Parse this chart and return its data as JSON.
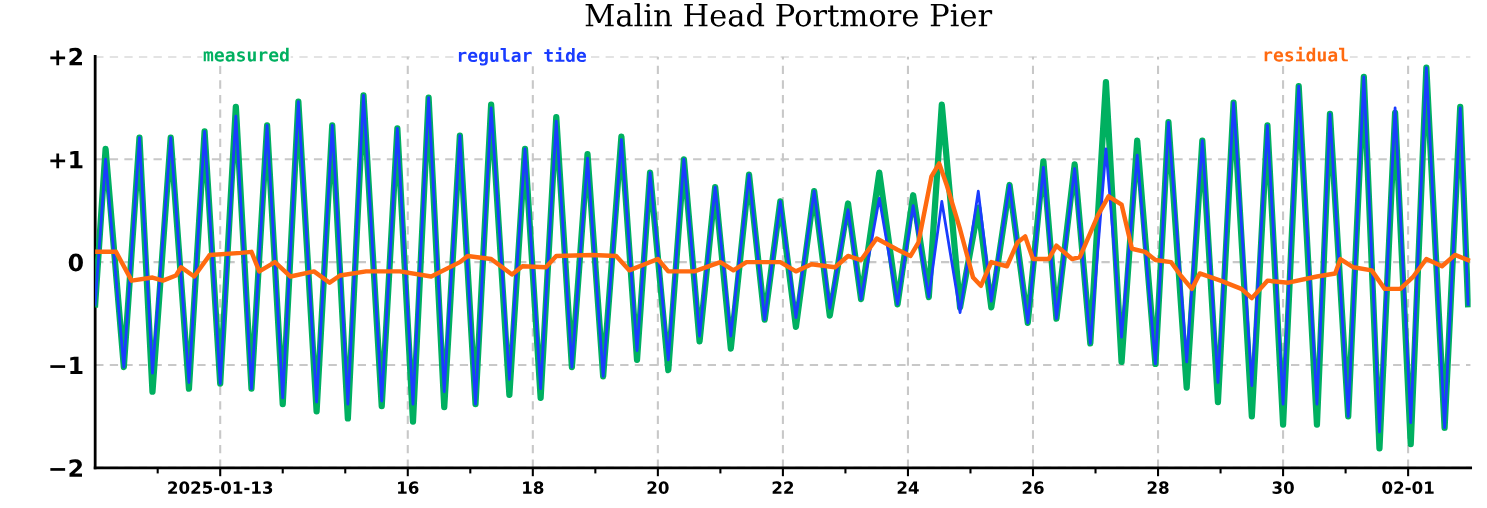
{
  "chart_data": {
    "type": "line",
    "title": "Malin Head Portmore Pier",
    "x": [
      "2025-01-11T00:00",
      "2025-01-11T04:00",
      "2025-01-11T11:00",
      "2025-01-11T17:00",
      "2025-01-11T22:00",
      "2025-01-12T05:00",
      "2025-01-12T12:00",
      "2025-01-12T18:00",
      "2025-01-13T00:00",
      "2025-01-13T06:00",
      "2025-01-13T12:00",
      "2025-01-13T18:00",
      "2025-01-14T00:00",
      "2025-01-14T06:00",
      "2025-01-14T13:00",
      "2025-01-14T19:00",
      "2025-01-15T01:00",
      "2025-01-15T07:00",
      "2025-01-15T14:00",
      "2025-01-15T20:00",
      "2025-01-16T02:00",
      "2025-01-16T08:00",
      "2025-01-16T14:00",
      "2025-01-16T20:00",
      "2025-01-17T02:00",
      "2025-01-17T08:00",
      "2025-01-17T15:00",
      "2025-01-17T21:00",
      "2025-01-18T03:00",
      "2025-01-18T09:00",
      "2025-01-18T15:00",
      "2025-01-18T21:00",
      "2025-01-19T03:00",
      "2025-01-19T10:00",
      "2025-01-19T16:00",
      "2025-01-19T21:00",
      "2025-01-20T04:00",
      "2025-01-20T10:00",
      "2025-01-20T16:00",
      "2025-01-20T22:00",
      "2025-01-21T04:00",
      "2025-01-21T11:00",
      "2025-01-21T17:00",
      "2025-01-21T23:00",
      "2025-01-22T05:00",
      "2025-01-22T12:00",
      "2025-01-22T18:00",
      "2025-01-23T01:00",
      "2025-01-23T06:00",
      "2025-01-23T13:00",
      "2025-01-23T20:00",
      "2025-01-24T02:00",
      "2025-01-24T08:00",
      "2025-01-24T13:00",
      "2025-01-24T20:00",
      "2025-01-25T03:00",
      "2025-01-25T08:00",
      "2025-01-25T15:00",
      "2025-01-25T22:00",
      "2025-01-26T04:00",
      "2025-01-26T09:00",
      "2025-01-26T16:00",
      "2025-01-26T22:00",
      "2025-01-27T04:00",
      "2025-01-27T10:00",
      "2025-01-27T16:00",
      "2025-01-27T23:00",
      "2025-01-28T04:00",
      "2025-01-28T11:00",
      "2025-01-28T17:00",
      "2025-01-28T23:00",
      "2025-01-29T05:00",
      "2025-01-29T12:00",
      "2025-01-29T18:00",
      "2025-01-30T00:00",
      "2025-01-30T06:00",
      "2025-01-30T13:00",
      "2025-01-30T18:00",
      "2025-01-31T01:00",
      "2025-01-31T07:00",
      "2025-01-31T13:00",
      "2025-01-31T19:00",
      "2025-02-01T01:00",
      "2025-02-01T07:00",
      "2025-02-01T14:00",
      "2025-02-01T20:00",
      "2025-02-01T23:00"
    ],
    "series": [
      {
        "name": "measured",
        "color": "#00b060",
        "values": [
          -0.41,
          1.1,
          -1.02,
          1.21,
          -1.26,
          1.21,
          -1.23,
          1.27,
          -1.18,
          1.51,
          -1.23,
          1.33,
          -1.38,
          1.56,
          -1.45,
          1.33,
          -1.52,
          1.62,
          -1.4,
          1.3,
          -1.55,
          1.6,
          -1.41,
          1.23,
          -1.38,
          1.53,
          -1.29,
          1.1,
          -1.32,
          1.41,
          -1.02,
          1.05,
          -1.11,
          1.22,
          -0.95,
          0.87,
          -1.05,
          1.0,
          -0.77,
          0.73,
          -0.84,
          0.85,
          -0.56,
          0.59,
          -0.63,
          0.69,
          -0.52,
          0.57,
          -0.36,
          0.87,
          -0.41,
          0.65,
          -0.34,
          1.53,
          -0.44,
          0.53,
          -0.44,
          0.75,
          -0.59,
          0.98,
          -0.55,
          0.95,
          -0.79,
          1.75,
          -0.97,
          1.18,
          -0.99,
          1.36,
          -1.22,
          1.18,
          -1.36,
          1.55,
          -1.5,
          1.33,
          -1.58,
          1.71,
          -1.58,
          1.44,
          -1.5,
          1.8,
          -1.81,
          1.45,
          -1.77,
          1.89,
          -1.61,
          1.51,
          -0.41
        ]
      },
      {
        "name": "regular tide",
        "color": "#1a3cff",
        "values": [
          -0.41,
          1.0,
          -1.02,
          1.21,
          -1.08,
          1.21,
          -1.17,
          1.27,
          -1.18,
          1.42,
          -1.23,
          1.33,
          -1.32,
          1.56,
          -1.36,
          1.33,
          -1.38,
          1.62,
          -1.35,
          1.3,
          -1.38,
          1.6,
          -1.26,
          1.23,
          -1.38,
          1.5,
          -1.14,
          1.1,
          -1.23,
          1.37,
          -1.02,
          1.01,
          -1.11,
          1.19,
          -0.86,
          0.87,
          -0.95,
          1.0,
          -0.72,
          0.73,
          -0.72,
          0.85,
          -0.56,
          0.59,
          -0.54,
          0.69,
          -0.45,
          0.51,
          -0.36,
          0.62,
          -0.41,
          0.55,
          -0.34,
          0.59,
          -0.49,
          0.69,
          -0.38,
          0.75,
          -0.59,
          0.92,
          -0.55,
          0.91,
          -0.79,
          1.1,
          -0.73,
          1.04,
          -0.99,
          1.36,
          -0.97,
          1.18,
          -1.17,
          1.55,
          -1.2,
          1.33,
          -1.38,
          1.71,
          -1.38,
          1.44,
          -1.5,
          1.8,
          -1.65,
          1.5,
          -1.56,
          1.89,
          -1.61,
          1.5,
          -0.41
        ]
      },
      {
        "name": "residual",
        "color": "#ff6a10",
        "x": [
          "2025-01-11T00:00",
          "2025-01-11T08:00",
          "2025-01-11T14:00",
          "2025-01-11T22:00",
          "2025-01-12T02:00",
          "2025-01-12T07:00",
          "2025-01-12T09:00",
          "2025-01-12T14:00",
          "2025-01-12T20:00",
          "2025-01-13T08:00",
          "2025-01-13T12:00",
          "2025-01-13T15:00",
          "2025-01-13T21:00",
          "2025-01-14T03:00",
          "2025-01-14T12:00",
          "2025-01-14T18:00",
          "2025-01-14T22:00",
          "2025-01-15T08:00",
          "2025-01-15T21:00",
          "2025-01-16T09:00",
          "2025-01-16T20:00",
          "2025-01-16T23:00",
          "2025-01-17T08:00",
          "2025-01-17T16:00",
          "2025-01-17T20:00",
          "2025-01-18T05:00",
          "2025-01-18T09:00",
          "2025-01-18T23:00",
          "2025-01-19T08:00",
          "2025-01-19T13:00",
          "2025-01-20T00:00",
          "2025-01-20T04:00",
          "2025-01-20T14:00",
          "2025-01-21T00:00",
          "2025-01-21T05:00",
          "2025-01-21T10:00",
          "2025-01-21T23:00",
          "2025-01-22T05:00",
          "2025-01-22T11:00",
          "2025-01-22T20:00",
          "2025-01-23T01:00",
          "2025-01-23T06:00",
          "2025-01-23T12:00",
          "2025-01-23T20:00",
          "2025-01-24T01:00",
          "2025-01-24T04:00",
          "2025-01-24T09:00",
          "2025-01-24T12:00",
          "2025-01-24T15:00",
          "2025-01-24T20:00",
          "2025-01-25T01:00",
          "2025-01-25T04:00",
          "2025-01-25T08:00",
          "2025-01-25T14:00",
          "2025-01-25T18:00",
          "2025-01-25T21:00",
          "2025-01-26T00:00",
          "2025-01-26T06:00",
          "2025-01-26T09:00",
          "2025-01-26T15:00",
          "2025-01-26T18:00",
          "2025-01-27T01:00",
          "2025-01-27T05:00",
          "2025-01-27T10:00",
          "2025-01-27T14:00",
          "2025-01-27T19:00",
          "2025-01-27T23:00",
          "2025-01-28T05:00",
          "2025-01-28T09:00",
          "2025-01-28T13:00",
          "2025-01-28T16:00",
          "2025-01-29T00:00",
          "2025-01-29T08:00",
          "2025-01-29T12:00",
          "2025-01-29T18:00",
          "2025-01-30T02:00",
          "2025-01-30T13:00",
          "2025-01-30T20:00",
          "2025-01-30T22:00",
          "2025-01-31T03:00",
          "2025-01-31T10:00",
          "2025-01-31T15:00",
          "2025-01-31T21:00",
          "2025-02-01T02:00",
          "2025-02-01T07:00",
          "2025-02-01T13:00",
          "2025-02-01T18:00",
          "2025-02-01T23:00"
        ],
        "values": [
          0.1,
          0.1,
          -0.18,
          -0.15,
          -0.18,
          -0.13,
          -0.05,
          -0.14,
          0.07,
          0.09,
          0.1,
          -0.09,
          0.0,
          -0.14,
          -0.09,
          -0.2,
          -0.13,
          -0.09,
          -0.09,
          -0.14,
          0.0,
          0.06,
          0.03,
          -0.12,
          -0.04,
          -0.05,
          0.06,
          0.07,
          0.06,
          -0.08,
          0.03,
          -0.09,
          -0.09,
          0.0,
          -0.08,
          0.0,
          0.0,
          -0.09,
          -0.02,
          -0.05,
          0.06,
          0.02,
          0.23,
          0.12,
          0.06,
          0.19,
          0.83,
          0.96,
          0.74,
          0.32,
          -0.15,
          -0.23,
          0.0,
          -0.04,
          0.19,
          0.25,
          0.03,
          0.03,
          0.16,
          0.03,
          0.05,
          0.46,
          0.64,
          0.56,
          0.13,
          0.1,
          0.02,
          0.0,
          -0.14,
          -0.26,
          -0.11,
          -0.18,
          -0.26,
          -0.35,
          -0.18,
          -0.2,
          -0.14,
          -0.11,
          0.03,
          -0.05,
          -0.08,
          -0.26,
          -0.26,
          -0.14,
          0.03,
          -0.04,
          0.07,
          0.02
        ]
      }
    ],
    "xlim": [
      "2025-01-11T00:00",
      "2025-02-02T00:00"
    ],
    "xticks": [
      {
        "value": "2025-01-12",
        "label": null
      },
      {
        "value": "2025-01-13",
        "label": "2025-01-13"
      },
      {
        "value": "2025-01-14",
        "label": null
      },
      {
        "value": "2025-01-15",
        "label": null
      },
      {
        "value": "2025-01-16",
        "label": "16"
      },
      {
        "value": "2025-01-17",
        "label": null
      },
      {
        "value": "2025-01-18",
        "label": "18"
      },
      {
        "value": "2025-01-19",
        "label": null
      },
      {
        "value": "2025-01-20",
        "label": "20"
      },
      {
        "value": "2025-01-21",
        "label": null
      },
      {
        "value": "2025-01-22",
        "label": "22"
      },
      {
        "value": "2025-01-23",
        "label": null
      },
      {
        "value": "2025-01-24",
        "label": "24"
      },
      {
        "value": "2025-01-25",
        "label": null
      },
      {
        "value": "2025-01-26",
        "label": "26"
      },
      {
        "value": "2025-01-27",
        "label": null
      },
      {
        "value": "2025-01-28",
        "label": "28"
      },
      {
        "value": "2025-01-29",
        "label": null
      },
      {
        "value": "2025-01-30",
        "label": "30"
      },
      {
        "value": "2025-01-31",
        "label": null
      },
      {
        "value": "2025-02-01",
        "label": "02-01"
      }
    ],
    "ylim": [
      -2,
      2
    ],
    "yticks": [
      {
        "value": -2,
        "label": "−2"
      },
      {
        "value": -1,
        "label": "−1"
      },
      0,
      {
        "value": 1,
        "label": "+1"
      },
      {
        "value": 2,
        "label": "+2"
      }
    ],
    "grid": true,
    "legend": "top",
    "marker": "none",
    "line_style": "solid"
  }
}
